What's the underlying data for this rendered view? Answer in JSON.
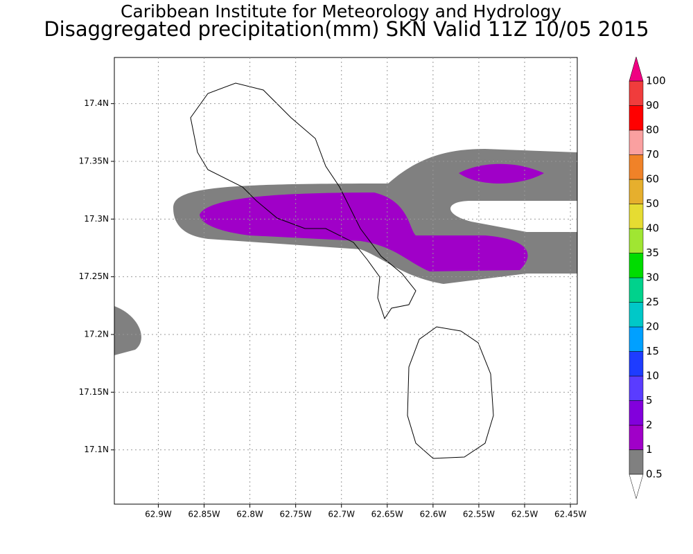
{
  "header": {
    "title": "Caribbean Institute for Meteorology and Hydrology",
    "subtitle": "Disaggregated precipitation(mm) SKN Valid 11Z 10/05 2015"
  },
  "map": {
    "xlim": [
      62.948,
      62.4425
    ],
    "xticks": [
      {
        "value": 62.9,
        "label": "62.9W"
      },
      {
        "value": 62.85,
        "label": "62.85W"
      },
      {
        "value": 62.8,
        "label": "62.8W"
      },
      {
        "value": 62.75,
        "label": "62.75W"
      },
      {
        "value": 62.7,
        "label": "62.7W"
      },
      {
        "value": 62.65,
        "label": "62.65W"
      },
      {
        "value": 62.6,
        "label": "62.6W"
      },
      {
        "value": 62.55,
        "label": "62.55W"
      },
      {
        "value": 62.5,
        "label": "62.5W"
      },
      {
        "value": 62.45,
        "label": "62.45W"
      }
    ],
    "ylim": [
      17.053,
      17.44
    ],
    "yticks": [
      {
        "value": 17.1,
        "label": "17.1N"
      },
      {
        "value": 17.15,
        "label": "17.15N"
      },
      {
        "value": 17.2,
        "label": "17.2N"
      },
      {
        "value": 17.25,
        "label": "17.25N"
      },
      {
        "value": 17.3,
        "label": "17.3N"
      },
      {
        "value": 17.35,
        "label": "17.35N"
      },
      {
        "value": 17.4,
        "label": "17.4N"
      }
    ],
    "grid": true
  },
  "colorbar": {
    "levels": [
      0.5,
      1,
      2,
      5,
      10,
      15,
      20,
      25,
      30,
      35,
      40,
      50,
      60,
      70,
      80,
      90,
      100
    ],
    "colors": [
      "#808080",
      "#a000c8",
      "#8200dc",
      "#5a3cff",
      "#1e3cff",
      "#00a0ff",
      "#00c8c8",
      "#00d28c",
      "#00dc00",
      "#a0e632",
      "#e6dc32",
      "#e6af2d",
      "#f08228",
      "#faa0a0",
      "#ff0000",
      "#f03c3c"
    ],
    "under_color": "#ffffff",
    "over_color": "#f00082"
  }
}
